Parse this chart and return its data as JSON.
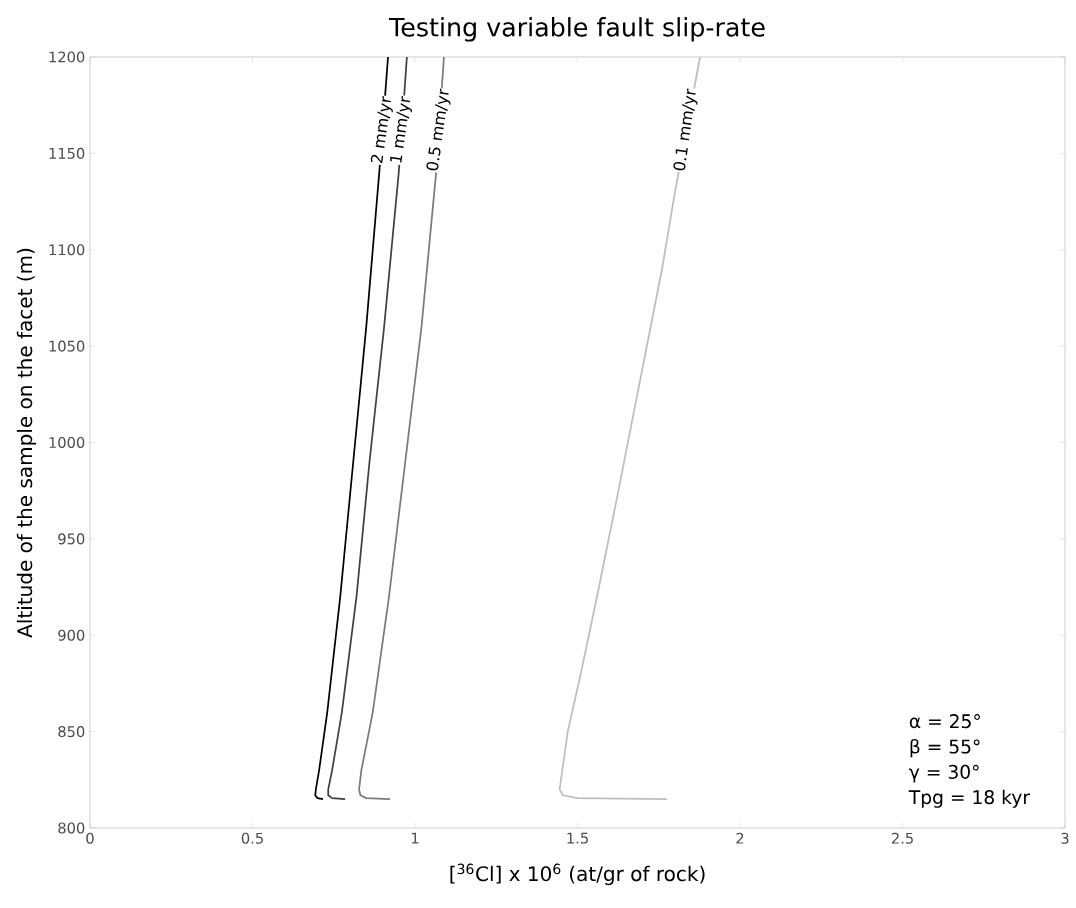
{
  "chart_data": {
    "type": "line",
    "title": "Testing variable fault slip-rate",
    "xlabel": "[$^{36}$Cl] x 10$^{6}$ (at/gr of rock)",
    "ylabel": "Altitude of the sample on the facet (m)",
    "xlim": [
      0,
      3
    ],
    "ylim": [
      800,
      1200
    ],
    "xticks": [
      0,
      0.5,
      1,
      1.5,
      2,
      2.5,
      3
    ],
    "yticks": [
      800,
      850,
      900,
      950,
      1000,
      1050,
      1100,
      1150,
      1200
    ],
    "grid": false,
    "series": [
      {
        "color": "#000000",
        "x": [
          0.717,
          0.7,
          0.693,
          0.695,
          0.705,
          0.73,
          0.77,
          0.81,
          0.85,
          0.89,
          0.917
        ],
        "values": [
          815,
          815.5,
          817,
          820,
          830,
          860,
          920,
          990,
          1060,
          1140,
          1200
        ]
      },
      {
        "color": "#404040",
        "x": [
          0.785,
          0.745,
          0.733,
          0.733,
          0.745,
          0.775,
          0.82,
          0.86,
          0.905,
          0.95,
          0.975
        ],
        "values": [
          815,
          815.5,
          817,
          820,
          830,
          860,
          920,
          990,
          1060,
          1140,
          1200
        ]
      },
      {
        "color": "#7a7a7a",
        "x": [
          0.923,
          0.85,
          0.832,
          0.828,
          0.835,
          0.87,
          0.92,
          0.97,
          1.02,
          1.065,
          1.089
        ],
        "values": [
          815,
          815.5,
          817,
          820,
          830,
          860,
          920,
          990,
          1060,
          1140,
          1200
        ]
      },
      {
        "color": "#bdbdbd",
        "x": [
          1.775,
          1.5,
          1.455,
          1.445,
          1.47,
          1.51,
          1.56,
          1.62,
          1.69,
          1.76,
          1.8,
          1.877
        ],
        "values": [
          815,
          815.5,
          817,
          820,
          850,
          880,
          920,
          970,
          1030,
          1090,
          1130,
          1200
        ]
      }
    ],
    "annotations": [
      {
        "text": "2 mm/yr",
        "x": 0.9,
        "y": 1162
      },
      {
        "text": "1 mm/yr",
        "x": 0.959,
        "y": 1162
      },
      {
        "text": "0.5 mm/yr",
        "x": 1.074,
        "y": 1162
      },
      {
        "text": "0.1 mm/yr",
        "x": 1.834,
        "y": 1162
      },
      "α = 25°",
      "β = 55°",
      "γ = 30°",
      "Tpg = 18 kyr"
    ]
  }
}
